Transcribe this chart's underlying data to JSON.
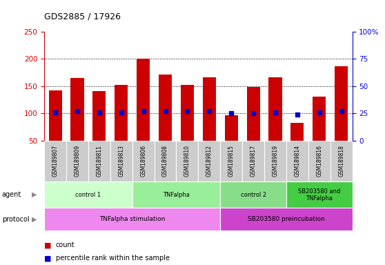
{
  "title": "GDS2885 / 17926",
  "samples": [
    "GSM189807",
    "GSM189809",
    "GSM189811",
    "GSM189813",
    "GSM189806",
    "GSM189808",
    "GSM189810",
    "GSM189812",
    "GSM189815",
    "GSM189817",
    "GSM189819",
    "GSM189814",
    "GSM189816",
    "GSM189818"
  ],
  "count_values": [
    142,
    165,
    141,
    152,
    201,
    171,
    152,
    166,
    97,
    148,
    166,
    83,
    131,
    187
  ],
  "percentile_values": [
    26,
    27,
    26,
    26,
    27,
    27,
    27,
    27,
    25,
    25,
    26,
    24,
    26,
    27
  ],
  "bar_bottom": 50,
  "ylim_left": [
    50,
    250
  ],
  "ylim_right": [
    0,
    100
  ],
  "yticks_left": [
    50,
    100,
    150,
    200,
    250
  ],
  "yticks_right": [
    0,
    25,
    50,
    75,
    100
  ],
  "ytick_labels_right": [
    "0",
    "25",
    "50",
    "75",
    "100%"
  ],
  "grid_values": [
    100,
    150,
    200
  ],
  "agent_groups": [
    {
      "label": "control 1",
      "start": 0,
      "end": 4,
      "color": "#ccffcc"
    },
    {
      "label": "TNFalpha",
      "start": 4,
      "end": 8,
      "color": "#99ee99"
    },
    {
      "label": "control 2",
      "start": 8,
      "end": 11,
      "color": "#88dd88"
    },
    {
      "label": "SB203580 and\nTNFalpha",
      "start": 11,
      "end": 14,
      "color": "#44cc44"
    }
  ],
  "protocol_groups": [
    {
      "label": "TNFalpha stimulation",
      "start": 0,
      "end": 8,
      "color": "#ee88ee"
    },
    {
      "label": "SB203580 preincubation",
      "start": 8,
      "end": 14,
      "color": "#cc44cc"
    }
  ],
  "bar_color": "#cc0000",
  "percentile_color": "#0000cc",
  "left_axis_color": "#cc0000",
  "right_axis_color": "#0000cc",
  "sample_box_color": "#cccccc",
  "legend_count_color": "#cc0000",
  "legend_pct_color": "#0000cc"
}
